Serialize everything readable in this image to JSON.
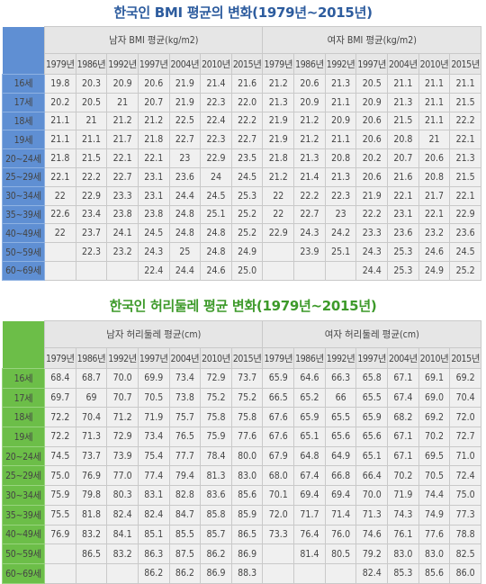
{
  "bmi": {
    "title": "한국인 BMI 평균의 변화(1979년~2015년)",
    "male_header": "남자 BMI 평균(kg/m2)",
    "female_header": "여자 BMI 평균(kg/m2)",
    "years": [
      "1979년",
      "1986년",
      "1992년",
      "1997년",
      "2004년",
      "2010년",
      "2015년"
    ],
    "rows": [
      {
        "age": "16세",
        "male": [
          "19.8",
          "20.3",
          "20.9",
          "20.6",
          "21.9",
          "21.4",
          "21.6"
        ],
        "female": [
          "21.2",
          "20.6",
          "21.3",
          "20.5",
          "21.1",
          "21.1",
          "21.1"
        ]
      },
      {
        "age": "17세",
        "male": [
          "20.2",
          "20.5",
          "21",
          "20.7",
          "21.9",
          "22.3",
          "22.0"
        ],
        "female": [
          "21.3",
          "20.9",
          "21.1",
          "20.9",
          "21.3",
          "21.1",
          "21.5"
        ]
      },
      {
        "age": "18세",
        "male": [
          "21.1",
          "21",
          "21.2",
          "21.2",
          "22.5",
          "22.4",
          "22.2"
        ],
        "female": [
          "21.9",
          "21.2",
          "20.9",
          "20.6",
          "21.5",
          "21.1",
          "22.2"
        ]
      },
      {
        "age": "19세",
        "male": [
          "21.1",
          "21.1",
          "21.7",
          "21.8",
          "22.7",
          "22.3",
          "22.7"
        ],
        "female": [
          "21.9",
          "21.2",
          "21.1",
          "20.6",
          "20.8",
          "21",
          "22.1"
        ]
      },
      {
        "age": "20~24세",
        "male": [
          "21.8",
          "21.5",
          "22.1",
          "22.1",
          "23",
          "22.9",
          "23.5"
        ],
        "female": [
          "21.8",
          "21.3",
          "20.8",
          "20.2",
          "20.7",
          "20.6",
          "21.3"
        ]
      },
      {
        "age": "25~29세",
        "male": [
          "22.1",
          "22.2",
          "22.7",
          "23.1",
          "23.6",
          "24",
          "24.5"
        ],
        "female": [
          "21.2",
          "21.4",
          "21.3",
          "20.6",
          "21.6",
          "20.8",
          "21.5"
        ]
      },
      {
        "age": "30~34세",
        "male": [
          "22",
          "22.9",
          "23.3",
          "23.1",
          "24.4",
          "24.5",
          "25.3"
        ],
        "female": [
          "22",
          "22.2",
          "22.3",
          "21.9",
          "22.1",
          "21.7",
          "22.1"
        ]
      },
      {
        "age": "35~39세",
        "male": [
          "22.6",
          "23.4",
          "23.8",
          "23.8",
          "24.8",
          "25.1",
          "25.2"
        ],
        "female": [
          "22",
          "22.7",
          "23",
          "22.2",
          "23.1",
          "22.1",
          "22.9"
        ]
      },
      {
        "age": "40~49세",
        "male": [
          "22",
          "23.7",
          "24.1",
          "24.5",
          "24.8",
          "24.8",
          "25.2"
        ],
        "female": [
          "22.9",
          "24.3",
          "24.2",
          "23.3",
          "23.6",
          "23.2",
          "23.6"
        ]
      },
      {
        "age": "50~59세",
        "male": [
          "",
          "22.3",
          "23.2",
          "24.3",
          "25",
          "24.8",
          "24.9"
        ],
        "female": [
          "",
          "23.9",
          "25.1",
          "24.3",
          "25.3",
          "24.6",
          "24.5"
        ]
      },
      {
        "age": "60~69세",
        "male": [
          "",
          "",
          "",
          "22.4",
          "24.4",
          "24.6",
          "25.0"
        ],
        "female": [
          "",
          "",
          "",
          "24.4",
          "25.3",
          "24.9",
          "25.2"
        ]
      }
    ]
  },
  "waist": {
    "title": "한국인 허리둘레 평균 변화(1979년~2015년)",
    "male_header": "남자 허리둘레 평균(cm)",
    "female_header": "여자 허리둘레 평균(cm)",
    "years": [
      "1979년",
      "1986년",
      "1992년",
      "1997년",
      "2004년",
      "2010년",
      "2015년"
    ],
    "rows": [
      {
        "age": "16세",
        "male": [
          "68.4",
          "68.7",
          "70.0",
          "69.9",
          "73.4",
          "72.9",
          "73.7"
        ],
        "female": [
          "65.9",
          "64.6",
          "66.3",
          "65.8",
          "67.1",
          "69.1",
          "69.2"
        ]
      },
      {
        "age": "17세",
        "male": [
          "69.7",
          "69",
          "70.7",
          "70.5",
          "73.8",
          "75.2",
          "75.2"
        ],
        "female": [
          "66.5",
          "65.2",
          "66",
          "65.5",
          "67.4",
          "69.0",
          "70.4"
        ]
      },
      {
        "age": "18세",
        "male": [
          "72.2",
          "70.4",
          "71.2",
          "71.9",
          "75.7",
          "75.8",
          "75.8"
        ],
        "female": [
          "67.6",
          "65.9",
          "65.5",
          "65.9",
          "68.2",
          "69.2",
          "72.0"
        ]
      },
      {
        "age": "19세",
        "male": [
          "72.2",
          "71.3",
          "72.9",
          "73.4",
          "76.5",
          "75.9",
          "77.6"
        ],
        "female": [
          "67.6",
          "65.1",
          "65.6",
          "65.6",
          "67.1",
          "70.2",
          "72.7"
        ]
      },
      {
        "age": "20~24세",
        "male": [
          "74.5",
          "73.7",
          "73.9",
          "75.4",
          "77.7",
          "78.4",
          "80.0"
        ],
        "female": [
          "67.9",
          "64.8",
          "64.9",
          "65.1",
          "67.1",
          "69.5",
          "71.0"
        ]
      },
      {
        "age": "25~29세",
        "male": [
          "75.0",
          "76.9",
          "77.0",
          "77.4",
          "79.4",
          "81.3",
          "83.0"
        ],
        "female": [
          "68.0",
          "67.4",
          "66.8",
          "66.4",
          "70.2",
          "70.5",
          "72.4"
        ]
      },
      {
        "age": "30~34세",
        "male": [
          "75.9",
          "79.8",
          "80.3",
          "83.1",
          "82.8",
          "83.6",
          "85.6"
        ],
        "female": [
          "70.1",
          "69.4",
          "69.4",
          "70.0",
          "71.9",
          "74.4",
          "75.0"
        ]
      },
      {
        "age": "35~39세",
        "male": [
          "75.5",
          "81.8",
          "82.4",
          "82.4",
          "84.7",
          "85.8",
          "85.9"
        ],
        "female": [
          "72.0",
          "71.7",
          "71.4",
          "71.3",
          "74.3",
          "74.9",
          "77.3"
        ]
      },
      {
        "age": "40~49세",
        "male": [
          "76.9",
          "83.2",
          "84.1",
          "85.1",
          "85.5",
          "85.7",
          "86.5"
        ],
        "female": [
          "73.3",
          "76.4",
          "76.0",
          "74.6",
          "76.1",
          "77.6",
          "78.8"
        ]
      },
      {
        "age": "50~59세",
        "male": [
          "",
          "86.5",
          "83.2",
          "86.3",
          "87.5",
          "86.2",
          "86.9"
        ],
        "female": [
          "",
          "81.4",
          "80.5",
          "79.2",
          "83.0",
          "83.0",
          "82.5"
        ]
      },
      {
        "age": "60~69세",
        "male": [
          "",
          "",
          "",
          "86.2",
          "86.2",
          "86.9",
          "88.3"
        ],
        "female": [
          "",
          "",
          "",
          "82.4",
          "85.3",
          "85.6",
          "86.0"
        ]
      }
    ]
  }
}
